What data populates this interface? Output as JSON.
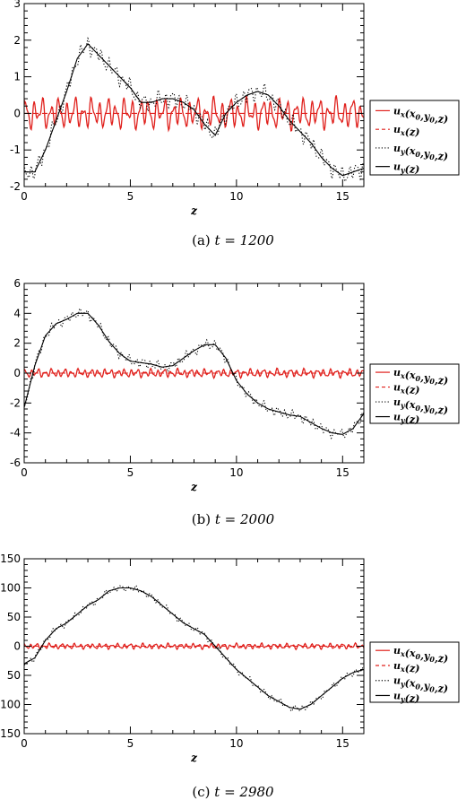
{
  "chart_data": [
    {
      "type": "line",
      "caption_prefix": "(a)",
      "caption_math": "t = 1200",
      "xlabel": "z",
      "xlim": [
        0,
        16
      ],
      "ylim": [
        -2,
        3
      ],
      "xticks": [
        0,
        5,
        10,
        15
      ],
      "yticks": [
        -2,
        -1,
        0,
        1,
        2,
        3
      ],
      "legend_position": "right",
      "legend": [
        "u_x(x_0,y_0,z)",
        "u_x(z)",
        "u_y(x_0,y_0,z)",
        "u_y(z)"
      ],
      "series": [
        {
          "name": "u_x(x_0,y_0,z)",
          "color": "#e0201c",
          "style": "solid",
          "amp": 0.45,
          "freq": 2.6,
          "x": [
            0,
            16
          ],
          "y": [
            0,
            0
          ]
        },
        {
          "name": "u_x(z)",
          "color": "#e0201c",
          "style": "dashed",
          "x": [
            0,
            16
          ],
          "y": [
            0,
            0
          ]
        },
        {
          "name": "u_y(x_0,y_0,z)",
          "color": "#000000",
          "style": "dotted",
          "amp": 0.25,
          "freq": 3.0,
          "x": [
            0,
            0.5,
            1,
            1.5,
            2,
            2.5,
            3,
            3.5,
            4,
            4.5,
            5,
            5.5,
            6,
            6.5,
            7,
            7.5,
            8,
            8.5,
            9,
            9.5,
            10,
            10.5,
            11,
            11.5,
            12,
            12.5,
            13,
            13.5,
            14,
            14.5,
            15,
            15.5,
            16
          ],
          "y": [
            -1.6,
            -1.6,
            -1.0,
            -0.2,
            0.6,
            1.5,
            1.9,
            1.6,
            1.3,
            1.0,
            0.7,
            0.3,
            0.3,
            0.4,
            0.4,
            0.3,
            0.1,
            -0.3,
            -0.6,
            0.0,
            0.3,
            0.5,
            0.6,
            0.5,
            0.2,
            -0.2,
            -0.5,
            -0.8,
            -1.2,
            -1.5,
            -1.7,
            -1.6,
            -1.5
          ]
        },
        {
          "name": "u_y(z)",
          "color": "#000000",
          "style": "solid",
          "x": [
            0,
            0.5,
            1,
            1.5,
            2,
            2.5,
            3,
            3.5,
            4,
            4.5,
            5,
            5.5,
            6,
            6.5,
            7,
            7.5,
            8,
            8.5,
            9,
            9.5,
            10,
            10.5,
            11,
            11.5,
            12,
            12.5,
            13,
            13.5,
            14,
            14.5,
            15,
            15.5,
            16
          ],
          "y": [
            -1.6,
            -1.6,
            -1.0,
            -0.2,
            0.6,
            1.5,
            1.9,
            1.6,
            1.3,
            1.0,
            0.7,
            0.3,
            0.3,
            0.4,
            0.4,
            0.3,
            0.1,
            -0.3,
            -0.6,
            0.0,
            0.3,
            0.5,
            0.6,
            0.5,
            0.2,
            -0.2,
            -0.5,
            -0.8,
            -1.2,
            -1.5,
            -1.7,
            -1.6,
            -1.5
          ]
        }
      ]
    },
    {
      "type": "line",
      "caption_prefix": "(b)",
      "caption_math": "t = 2000",
      "xlabel": "z",
      "xlim": [
        0,
        16
      ],
      "ylim": [
        -6,
        6
      ],
      "xticks": [
        0,
        5,
        10,
        15
      ],
      "yticks": [
        -6,
        -4,
        -2,
        0,
        2,
        4,
        6
      ],
      "legend_position": "right",
      "legend": [
        "u_x(x_0,y_0,z)",
        "u_x(z)",
        "u_y(x_0,y_0,z)",
        "u_y(z)"
      ],
      "series": [
        {
          "name": "u_x(x_0,y_0,z)",
          "color": "#e0201c",
          "style": "solid",
          "amp": 0.3,
          "freq": 3.2,
          "x": [
            0,
            16
          ],
          "y": [
            0,
            0
          ]
        },
        {
          "name": "u_x(z)",
          "color": "#e0201c",
          "style": "dashed",
          "x": [
            0,
            16
          ],
          "y": [
            0,
            0
          ]
        },
        {
          "name": "u_y(x_0,y_0,z)",
          "color": "#000000",
          "style": "dotted",
          "amp": 0.35,
          "freq": 3.0,
          "x": [
            0,
            0.5,
            1,
            1.5,
            2,
            2.5,
            3,
            3.5,
            4,
            4.5,
            5,
            5.5,
            6,
            6.5,
            7,
            7.5,
            8,
            8.5,
            9,
            9.5,
            10,
            10.5,
            11,
            11.5,
            12,
            12.5,
            13,
            13.5,
            14,
            14.5,
            15,
            15.5,
            16
          ],
          "y": [
            -2.3,
            0.5,
            2.5,
            3.3,
            3.6,
            4.0,
            4.0,
            3.2,
            2.1,
            1.3,
            0.8,
            0.7,
            0.6,
            0.4,
            0.5,
            1.0,
            1.5,
            1.9,
            1.9,
            1.0,
            -0.5,
            -1.4,
            -2.0,
            -2.4,
            -2.6,
            -2.8,
            -2.9,
            -3.3,
            -3.7,
            -4.0,
            -4.1,
            -3.7,
            -2.7
          ]
        },
        {
          "name": "u_y(z)",
          "color": "#000000",
          "style": "solid",
          "x": [
            0,
            0.5,
            1,
            1.5,
            2,
            2.5,
            3,
            3.5,
            4,
            4.5,
            5,
            5.5,
            6,
            6.5,
            7,
            7.5,
            8,
            8.5,
            9,
            9.5,
            10,
            10.5,
            11,
            11.5,
            12,
            12.5,
            13,
            13.5,
            14,
            14.5,
            15,
            15.5,
            16
          ],
          "y": [
            -2.3,
            0.5,
            2.5,
            3.3,
            3.6,
            4.0,
            4.0,
            3.2,
            2.1,
            1.3,
            0.8,
            0.7,
            0.6,
            0.4,
            0.5,
            1.0,
            1.5,
            1.9,
            1.9,
            1.0,
            -0.5,
            -1.4,
            -2.0,
            -2.4,
            -2.6,
            -2.8,
            -2.9,
            -3.3,
            -3.7,
            -4.0,
            -4.1,
            -3.7,
            -2.7
          ]
        }
      ]
    },
    {
      "type": "line",
      "caption_prefix": "(c)",
      "caption_math": "t = 2980",
      "xlabel": "z",
      "xlim": [
        0,
        16
      ],
      "ylim": [
        -150,
        150
      ],
      "xticks": [
        0,
        5,
        10,
        15
      ],
      "yticks": [
        -150,
        -100,
        -50,
        0,
        50,
        100,
        150
      ],
      "ytick_labels": [
        "150",
        "100",
        "50",
        "0",
        "50",
        "100",
        "150"
      ],
      "legend_position": "right",
      "legend": [
        "u_x(x_0,y_0,z)",
        "u_x(z)",
        "u_y(x_0,y_0,z)",
        "u_y(z)"
      ],
      "series": [
        {
          "name": "u_x(x_0,y_0,z)",
          "color": "#e0201c",
          "style": "solid",
          "amp": 5,
          "freq": 3.4,
          "x": [
            0,
            16
          ],
          "y": [
            0,
            0
          ]
        },
        {
          "name": "u_x(z)",
          "color": "#e0201c",
          "style": "dashed",
          "x": [
            0,
            16
          ],
          "y": [
            0,
            0
          ]
        },
        {
          "name": "u_y(x_0,y_0,z)",
          "color": "#000000",
          "style": "dotted",
          "amp": 6,
          "freq": 2.8,
          "x": [
            0,
            0.5,
            1,
            1.5,
            2,
            2.5,
            3,
            3.5,
            4,
            4.5,
            5,
            5.5,
            6,
            6.5,
            7,
            7.5,
            8,
            8.5,
            9,
            9.5,
            10,
            10.5,
            11,
            11.5,
            12,
            12.5,
            13,
            13.5,
            14,
            14.5,
            15,
            15.5,
            16
          ],
          "y": [
            -30,
            -20,
            10,
            30,
            40,
            55,
            70,
            80,
            95,
            100,
            100,
            95,
            85,
            70,
            55,
            40,
            30,
            20,
            0,
            -20,
            -40,
            -55,
            -70,
            -85,
            -95,
            -105,
            -108,
            -100,
            -85,
            -70,
            -55,
            -45,
            -40
          ]
        },
        {
          "name": "u_y(z)",
          "color": "#000000",
          "style": "solid",
          "x": [
            0,
            0.5,
            1,
            1.5,
            2,
            2.5,
            3,
            3.5,
            4,
            4.5,
            5,
            5.5,
            6,
            6.5,
            7,
            7.5,
            8,
            8.5,
            9,
            9.5,
            10,
            10.5,
            11,
            11.5,
            12,
            12.5,
            13,
            13.5,
            14,
            14.5,
            15,
            15.5,
            16
          ],
          "y": [
            -30,
            -20,
            10,
            30,
            40,
            55,
            70,
            80,
            95,
            100,
            100,
            95,
            85,
            70,
            55,
            40,
            30,
            20,
            0,
            -20,
            -40,
            -55,
            -70,
            -85,
            -95,
            -105,
            -108,
            -100,
            -85,
            -70,
            -55,
            -45,
            -40
          ]
        }
      ]
    }
  ]
}
